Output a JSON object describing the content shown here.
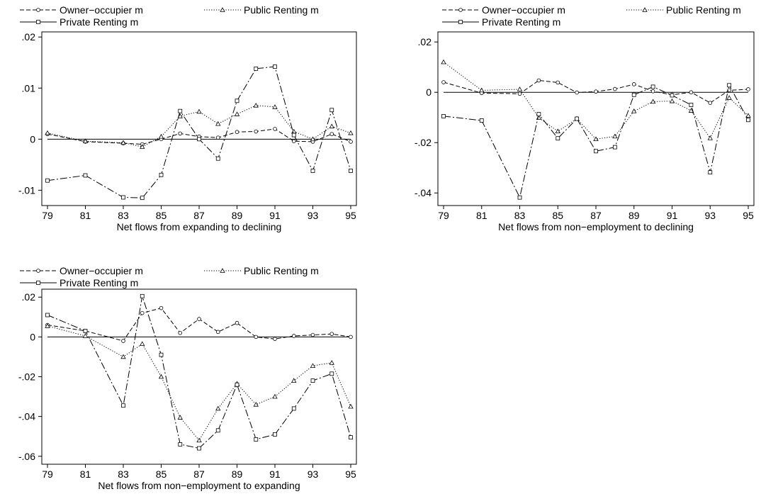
{
  "chart_data": [
    {
      "type": "line",
      "xlabel": "Net flows from expanding to declining",
      "ylabel": "",
      "x": [
        79,
        81,
        83,
        84,
        85,
        86,
        87,
        88,
        89,
        90,
        91,
        92,
        93,
        94,
        95
      ],
      "xticks": [
        79,
        81,
        83,
        85,
        87,
        89,
        91,
        93,
        95
      ],
      "xlim": [
        79,
        95
      ],
      "yticks": [
        -0.01,
        0,
        0.01,
        0.02
      ],
      "ytick_labels": [
        "-.01",
        "0",
        ".01",
        ".02"
      ],
      "ylim": [
        -0.013,
        0.021
      ],
      "zero_line": true,
      "legend_position": "top",
      "series": [
        {
          "name": "Owner−occupier m",
          "marker": "circle",
          "dash": "dashed",
          "values": [
            0.001,
            -0.0005,
            -0.0008,
            -0.001,
            0.0,
            0.0011,
            0.0005,
            0.0003,
            0.0014,
            0.0015,
            0.002,
            -0.0004,
            -0.0005,
            0.001,
            -0.0005
          ]
        },
        {
          "name": "Public Renting m",
          "marker": "triangle",
          "dash": "dotted",
          "values": [
            0.0012,
            -0.0004,
            -0.0007,
            -0.0015,
            0.0005,
            0.0045,
            0.0054,
            0.003,
            0.0049,
            0.0066,
            0.0063,
            0.0015,
            0.0,
            0.0025,
            0.0012
          ]
        },
        {
          "name": "Private Renting m",
          "marker": "square",
          "dash": "dashdot",
          "values": [
            -0.0081,
            -0.0071,
            -0.0114,
            -0.0115,
            -0.007,
            0.0055,
            0.0,
            -0.0038,
            0.0075,
            0.0138,
            0.0142,
            0.0008,
            -0.0062,
            0.0057,
            -0.0062
          ]
        }
      ]
    },
    {
      "type": "line",
      "xlabel": "Net flows from non−employment to declining",
      "ylabel": "",
      "x": [
        79,
        81,
        83,
        84,
        85,
        86,
        87,
        88,
        89,
        90,
        91,
        92,
        93,
        94,
        95
      ],
      "xticks": [
        79,
        81,
        83,
        85,
        87,
        89,
        91,
        93,
        95
      ],
      "xlim": [
        79,
        95
      ],
      "yticks": [
        -0.04,
        -0.02,
        0,
        0.02
      ],
      "ytick_labels": [
        "-.04",
        "-.02",
        "0",
        ".02"
      ],
      "ylim": [
        -0.045,
        0.024
      ],
      "zero_line": true,
      "legend_position": "top",
      "series": [
        {
          "name": "Owner−occupier m",
          "marker": "circle",
          "dash": "dashed",
          "values": [
            0.004,
            -0.0003,
            -0.0006,
            0.0047,
            0.0039,
            -0.0001,
            0.0003,
            0.0013,
            0.0032,
            0.0004,
            -0.001,
            0.0,
            -0.0042,
            0.0008,
            0.0012
          ]
        },
        {
          "name": "Public Renting m",
          "marker": "triangle",
          "dash": "dotted",
          "values": [
            0.012,
            0.0008,
            0.0012,
            -0.0101,
            -0.0155,
            -0.0105,
            -0.0186,
            -0.0175,
            -0.0075,
            -0.0037,
            -0.0035,
            -0.0073,
            -0.0182,
            -0.0022,
            -0.0093
          ]
        },
        {
          "name": "Private Renting m",
          "marker": "square",
          "dash": "dashdot",
          "values": [
            -0.0095,
            -0.0112,
            -0.0418,
            -0.0087,
            -0.0183,
            -0.0105,
            -0.0234,
            -0.0218,
            -0.001,
            0.0022,
            -0.0012,
            -0.005,
            -0.0318,
            0.0028,
            -0.011
          ]
        }
      ]
    },
    {
      "type": "line",
      "xlabel": "Net flows from non−employment to expanding",
      "ylabel": "",
      "x": [
        79,
        81,
        83,
        84,
        85,
        86,
        87,
        88,
        89,
        90,
        91,
        92,
        93,
        94,
        95
      ],
      "xticks": [
        79,
        81,
        83,
        85,
        87,
        89,
        91,
        93,
        95
      ],
      "xlim": [
        79,
        95
      ],
      "yticks": [
        -0.06,
        -0.04,
        -0.02,
        0,
        0.02
      ],
      "ytick_labels": [
        "-.06",
        "-.04",
        "-.02",
        "0",
        ".02"
      ],
      "ylim": [
        -0.064,
        0.024
      ],
      "zero_line": true,
      "legend_position": "top",
      "series": [
        {
          "name": "Owner−occupier m",
          "marker": "circle",
          "dash": "dashed",
          "values": [
            0.006,
            0.003,
            -0.002,
            0.012,
            0.0145,
            0.002,
            0.009,
            0.0025,
            0.007,
            0.0,
            -0.001,
            0.0005,
            0.001,
            0.0015,
            0.0
          ]
        },
        {
          "name": "Public Renting m",
          "marker": "triangle",
          "dash": "dotted",
          "values": [
            0.0055,
            0.0005,
            -0.01,
            -0.0035,
            -0.02,
            -0.0405,
            -0.052,
            -0.036,
            -0.0235,
            -0.034,
            -0.03,
            -0.022,
            -0.0145,
            -0.013,
            -0.035
          ]
        },
        {
          "name": "Private Renting m",
          "marker": "square",
          "dash": "dashdot",
          "values": [
            0.011,
            0.003,
            -0.0345,
            0.0205,
            -0.009,
            -0.054,
            -0.056,
            -0.047,
            -0.024,
            -0.0515,
            -0.049,
            -0.036,
            -0.022,
            -0.0185,
            -0.0505
          ]
        }
      ]
    }
  ]
}
